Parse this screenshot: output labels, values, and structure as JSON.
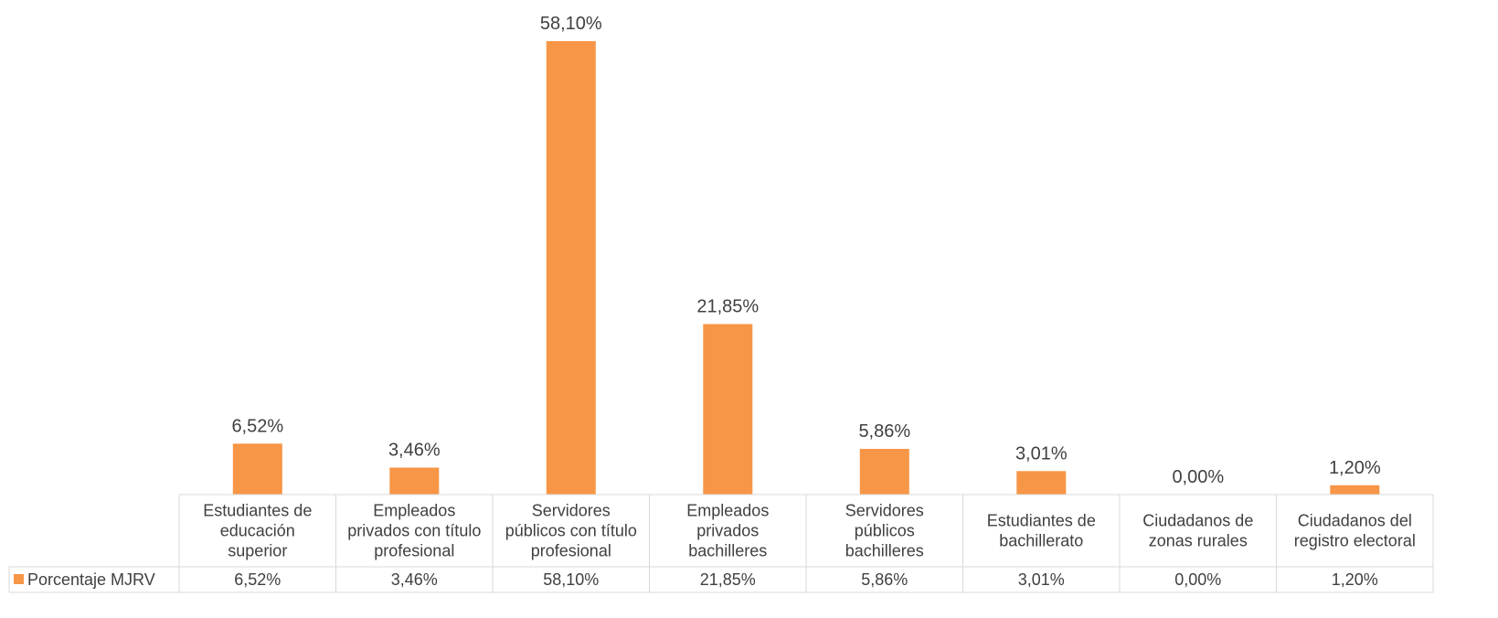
{
  "chart_data": {
    "type": "bar",
    "categories": [
      [
        "Estudiantes de",
        "educación",
        "superior"
      ],
      [
        "Empleados",
        "privados con título",
        "profesional"
      ],
      [
        "Servidores",
        "públicos con título",
        "profesional"
      ],
      [
        "Empleados",
        "privados",
        "bachilleres"
      ],
      [
        "Servidores",
        "públicos",
        "bachilleres"
      ],
      [
        "Estudiantes de",
        "bachillerato"
      ],
      [
        "Ciudadanos de",
        "zonas rurales"
      ],
      [
        "Ciudadanos del",
        "registro electoral"
      ]
    ],
    "series": [
      {
        "name": "Porcentaje MJRV",
        "values": [
          6.52,
          3.46,
          58.1,
          21.85,
          5.86,
          3.01,
          0.0,
          1.2
        ],
        "labels": [
          "6,52%",
          "3,46%",
          "58,10%",
          "21,85%",
          "5,86%",
          "3,01%",
          "0,00%",
          "1,20%"
        ]
      }
    ],
    "ylim": [
      0,
      60
    ],
    "data_table": true,
    "legend_in_table": true,
    "grid": false,
    "colors": {
      "bar": "#f79646",
      "text": "#404040",
      "table_border": "#d9d9d9"
    }
  }
}
